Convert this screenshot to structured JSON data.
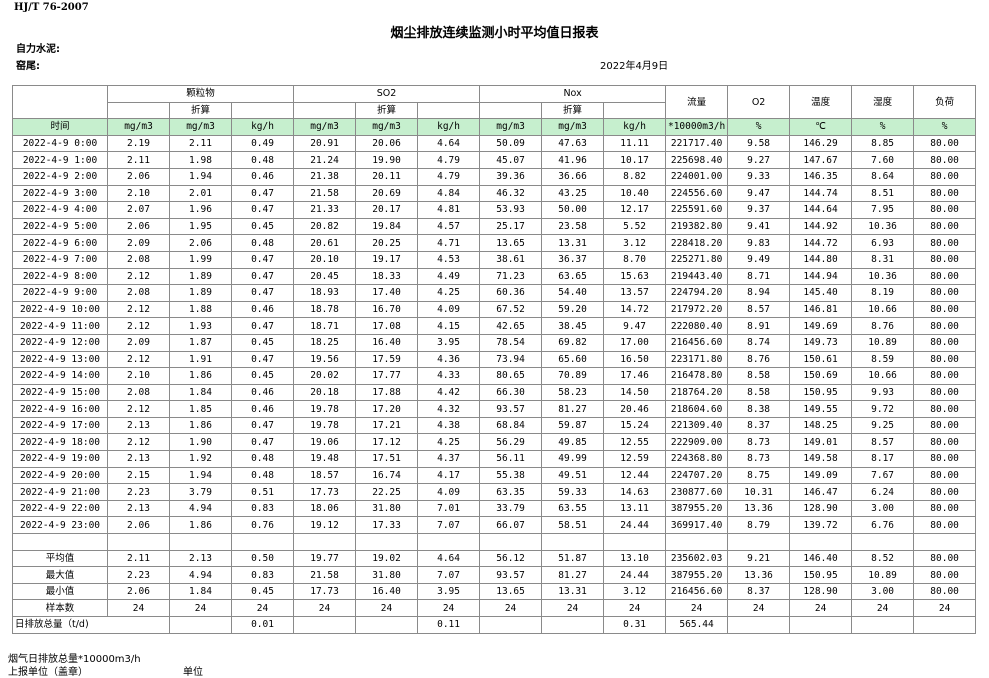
{
  "header": {
    "standard": "HJ/T  76-2007",
    "title": "烟尘排放连续监测小时平均值日报表",
    "company": "自力水泥:",
    "unit": "窑尾:",
    "date": "2022年4月9日"
  },
  "table": {
    "groups": [
      "颗粒物",
      "SO2",
      "Nox"
    ],
    "single_headers": [
      "流量",
      "O2",
      "温度",
      "湿度",
      "负荷"
    ],
    "converted": [
      "折算",
      "折算",
      "折算"
    ],
    "units": [
      "时间",
      "mg/m3",
      "mg/m3",
      "kg/h",
      "mg/m3",
      "mg/m3",
      "kg/h",
      "mg/m3",
      "mg/m3",
      "kg/h",
      "*10000m3/h",
      "%",
      "℃",
      "%",
      "%"
    ],
    "rows": [
      [
        "2022-4-9 0:00",
        "2.19",
        "2.11",
        "0.49",
        "20.91",
        "20.06",
        "4.64",
        "50.09",
        "47.63",
        "11.11",
        "221717.40",
        "9.58",
        "146.29",
        "8.85",
        "80.00"
      ],
      [
        "2022-4-9 1:00",
        "2.11",
        "1.98",
        "0.48",
        "21.24",
        "19.90",
        "4.79",
        "45.07",
        "41.96",
        "10.17",
        "225698.40",
        "9.27",
        "147.67",
        "7.60",
        "80.00"
      ],
      [
        "2022-4-9 2:00",
        "2.06",
        "1.94",
        "0.46",
        "21.38",
        "20.11",
        "4.79",
        "39.36",
        "36.66",
        "8.82",
        "224001.00",
        "9.33",
        "146.35",
        "8.64",
        "80.00"
      ],
      [
        "2022-4-9 3:00",
        "2.10",
        "2.01",
        "0.47",
        "21.58",
        "20.69",
        "4.84",
        "46.32",
        "43.25",
        "10.40",
        "224556.60",
        "9.47",
        "144.74",
        "8.51",
        "80.00"
      ],
      [
        "2022-4-9 4:00",
        "2.07",
        "1.96",
        "0.47",
        "21.33",
        "20.17",
        "4.81",
        "53.93",
        "50.00",
        "12.17",
        "225591.60",
        "9.37",
        "144.64",
        "7.95",
        "80.00"
      ],
      [
        "2022-4-9 5:00",
        "2.06",
        "1.95",
        "0.45",
        "20.82",
        "19.84",
        "4.57",
        "25.17",
        "23.58",
        "5.52",
        "219382.80",
        "9.41",
        "144.92",
        "10.36",
        "80.00"
      ],
      [
        "2022-4-9 6:00",
        "2.09",
        "2.06",
        "0.48",
        "20.61",
        "20.25",
        "4.71",
        "13.65",
        "13.31",
        "3.12",
        "228418.20",
        "9.83",
        "144.72",
        "6.93",
        "80.00"
      ],
      [
        "2022-4-9 7:00",
        "2.08",
        "1.99",
        "0.47",
        "20.10",
        "19.17",
        "4.53",
        "38.61",
        "36.37",
        "8.70",
        "225271.80",
        "9.49",
        "144.80",
        "8.31",
        "80.00"
      ],
      [
        "2022-4-9 8:00",
        "2.12",
        "1.89",
        "0.47",
        "20.45",
        "18.33",
        "4.49",
        "71.23",
        "63.65",
        "15.63",
        "219443.40",
        "8.71",
        "144.94",
        "10.36",
        "80.00"
      ],
      [
        "2022-4-9 9:00",
        "2.08",
        "1.89",
        "0.47",
        "18.93",
        "17.40",
        "4.25",
        "60.36",
        "54.40",
        "13.57",
        "224794.20",
        "8.94",
        "145.40",
        "8.19",
        "80.00"
      ],
      [
        "2022-4-9 10:00",
        "2.12",
        "1.88",
        "0.46",
        "18.78",
        "16.70",
        "4.09",
        "67.52",
        "59.20",
        "14.72",
        "217972.20",
        "8.57",
        "146.81",
        "10.66",
        "80.00"
      ],
      [
        "2022-4-9 11:00",
        "2.12",
        "1.93",
        "0.47",
        "18.71",
        "17.08",
        "4.15",
        "42.65",
        "38.45",
        "9.47",
        "222080.40",
        "8.91",
        "149.69",
        "8.76",
        "80.00"
      ],
      [
        "2022-4-9 12:00",
        "2.09",
        "1.87",
        "0.45",
        "18.25",
        "16.40",
        "3.95",
        "78.54",
        "69.82",
        "17.00",
        "216456.60",
        "8.74",
        "149.73",
        "10.89",
        "80.00"
      ],
      [
        "2022-4-9 13:00",
        "2.12",
        "1.91",
        "0.47",
        "19.56",
        "17.59",
        "4.36",
        "73.94",
        "65.60",
        "16.50",
        "223171.80",
        "8.76",
        "150.61",
        "8.59",
        "80.00"
      ],
      [
        "2022-4-9 14:00",
        "2.10",
        "1.86",
        "0.45",
        "20.02",
        "17.77",
        "4.33",
        "80.65",
        "70.89",
        "17.46",
        "216478.80",
        "8.58",
        "150.69",
        "10.66",
        "80.00"
      ],
      [
        "2022-4-9 15:00",
        "2.08",
        "1.84",
        "0.46",
        "20.18",
        "17.88",
        "4.42",
        "66.30",
        "58.23",
        "14.50",
        "218764.20",
        "8.58",
        "150.95",
        "9.93",
        "80.00"
      ],
      [
        "2022-4-9 16:00",
        "2.12",
        "1.85",
        "0.46",
        "19.78",
        "17.20",
        "4.32",
        "93.57",
        "81.27",
        "20.46",
        "218604.60",
        "8.38",
        "149.55",
        "9.72",
        "80.00"
      ],
      [
        "2022-4-9 17:00",
        "2.13",
        "1.86",
        "0.47",
        "19.78",
        "17.21",
        "4.38",
        "68.84",
        "59.87",
        "15.24",
        "221309.40",
        "8.37",
        "148.25",
        "9.25",
        "80.00"
      ],
      [
        "2022-4-9 18:00",
        "2.12",
        "1.90",
        "0.47",
        "19.06",
        "17.12",
        "4.25",
        "56.29",
        "49.85",
        "12.55",
        "222909.00",
        "8.73",
        "149.01",
        "8.57",
        "80.00"
      ],
      [
        "2022-4-9 19:00",
        "2.13",
        "1.92",
        "0.48",
        "19.48",
        "17.51",
        "4.37",
        "56.11",
        "49.99",
        "12.59",
        "224368.80",
        "8.73",
        "149.58",
        "8.17",
        "80.00"
      ],
      [
        "2022-4-9 20:00",
        "2.15",
        "1.94",
        "0.48",
        "18.57",
        "16.74",
        "4.17",
        "55.38",
        "49.51",
        "12.44",
        "224707.20",
        "8.75",
        "149.09",
        "7.67",
        "80.00"
      ],
      [
        "2022-4-9 21:00",
        "2.23",
        "3.79",
        "0.51",
        "17.73",
        "22.25",
        "4.09",
        "63.35",
        "59.33",
        "14.63",
        "230877.60",
        "10.31",
        "146.47",
        "6.24",
        "80.00"
      ],
      [
        "2022-4-9 22:00",
        "2.13",
        "4.94",
        "0.83",
        "18.06",
        "31.80",
        "7.01",
        "33.79",
        "63.55",
        "13.11",
        "387955.20",
        "13.36",
        "128.90",
        "3.00",
        "80.00"
      ],
      [
        "2022-4-9 23:00",
        "2.06",
        "1.86",
        "0.76",
        "19.12",
        "17.33",
        "7.07",
        "66.07",
        "58.51",
        "24.44",
        "369917.40",
        "8.79",
        "139.72",
        "6.76",
        "80.00"
      ]
    ],
    "summary": [
      [
        "平均值",
        "2.11",
        "2.13",
        "0.50",
        "19.77",
        "19.02",
        "4.64",
        "56.12",
        "51.87",
        "13.10",
        "235602.03",
        "9.21",
        "146.40",
        "8.52",
        "80.00"
      ],
      [
        "最大值",
        "2.23",
        "4.94",
        "0.83",
        "21.58",
        "31.80",
        "7.07",
        "93.57",
        "81.27",
        "24.44",
        "387955.20",
        "13.36",
        "150.95",
        "10.89",
        "80.00"
      ],
      [
        "最小值",
        "2.06",
        "1.84",
        "0.45",
        "17.73",
        "16.40",
        "3.95",
        "13.65",
        "13.31",
        "3.12",
        "216456.60",
        "8.37",
        "128.90",
        "3.00",
        "80.00"
      ],
      [
        "样本数",
        "24",
        "24",
        "24",
        "24",
        "24",
        "24",
        "24",
        "24",
        "24",
        "24",
        "24",
        "24",
        "24",
        "24"
      ]
    ],
    "daily_total": {
      "label": "日排放总量（t/d)",
      "values": [
        null,
        "0.01",
        null,
        null,
        "0.11",
        null,
        null,
        "0.31",
        "565.44",
        null,
        null,
        null,
        null
      ]
    }
  },
  "footer": {
    "flue_gas": "烟气日排放总量*10000m3/h",
    "reporter": "上报单位（盖章）",
    "unit": "单位"
  }
}
